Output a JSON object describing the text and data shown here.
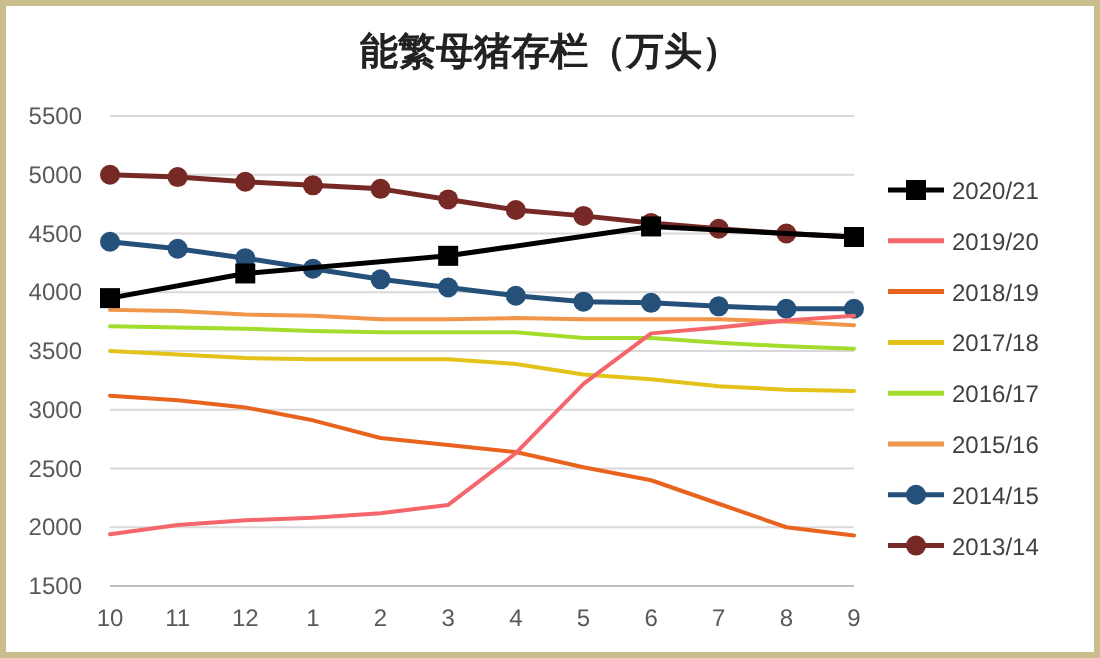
{
  "chart_data": {
    "type": "line",
    "title": "能繁母猪存栏（万头）",
    "categories": [
      "10",
      "11",
      "12",
      "1",
      "2",
      "3",
      "4",
      "5",
      "6",
      "7",
      "8",
      "9"
    ],
    "ylim": [
      1500,
      5500
    ],
    "yticks": [
      1500,
      2000,
      2500,
      3000,
      3500,
      4000,
      4500,
      5000,
      5500
    ],
    "grid": "y",
    "legend": "right",
    "series": [
      {
        "name": "2020/21",
        "color": "#000000",
        "marker": "square",
        "values": [
          3950,
          null,
          4160,
          null,
          null,
          4310,
          null,
          null,
          4560,
          null,
          null,
          4470
        ]
      },
      {
        "name": "2019/20",
        "color": "#f4666b",
        "marker": "none",
        "values": [
          1940,
          2020,
          2060,
          2080,
          2120,
          2190,
          2630,
          3220,
          3650,
          3700,
          3760,
          3800
        ]
      },
      {
        "name": "2018/19",
        "color": "#e8641e",
        "marker": "none",
        "values": [
          3120,
          3080,
          3020,
          2910,
          2760,
          2700,
          2640,
          2510,
          2400,
          2200,
          2000,
          1930
        ]
      },
      {
        "name": "2017/18",
        "color": "#e3c21a",
        "marker": "none",
        "values": [
          3500,
          3470,
          3440,
          3430,
          3430,
          3430,
          3390,
          3300,
          3260,
          3200,
          3170,
          3160
        ]
      },
      {
        "name": "2016/17",
        "color": "#a2dc2c",
        "marker": "none",
        "values": [
          3710,
          3700,
          3690,
          3670,
          3660,
          3660,
          3660,
          3610,
          3610,
          3570,
          3540,
          3520
        ]
      },
      {
        "name": "2015/16",
        "color": "#f0954a",
        "marker": "none",
        "values": [
          3850,
          3840,
          3810,
          3800,
          3770,
          3770,
          3780,
          3770,
          3770,
          3770,
          3750,
          3720
        ]
      },
      {
        "name": "2014/15",
        "color": "#24507a",
        "marker": "circle",
        "values": [
          4430,
          4370,
          4290,
          4200,
          4110,
          4040,
          3970,
          3920,
          3910,
          3880,
          3860,
          3860
        ]
      },
      {
        "name": "2013/14",
        "color": "#772a25",
        "marker": "circle",
        "values": [
          5000,
          4980,
          4940,
          4910,
          4880,
          4790,
          4700,
          4650,
          4590,
          4540,
          4500,
          4470
        ]
      }
    ]
  }
}
